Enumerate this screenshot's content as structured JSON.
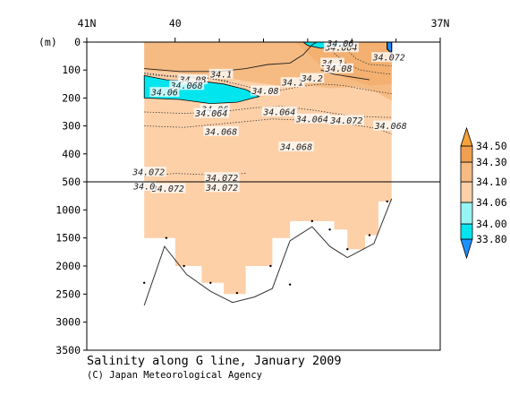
{
  "chart_data": {
    "type": "contour",
    "title": "Salinity along G line, January 2009",
    "credit": "(C) Japan Meteorological Agency",
    "ylabel": "(m)",
    "x_axis": {
      "range_lat": [
        41,
        37
      ],
      "tick_labels": [
        {
          "lat": 41,
          "label": "41N"
        },
        {
          "lat": 40,
          "label": "40"
        },
        {
          "lat": 37,
          "label": "37N"
        }
      ],
      "minor_ticks_lat": [
        39.5,
        39,
        38.5,
        38,
        37.5
      ]
    },
    "y_axis": {
      "upper_segment": {
        "range_m": [
          0,
          500
        ],
        "ticks": [
          0,
          100,
          200,
          300,
          400,
          500
        ]
      },
      "lower_segment": {
        "range_m": [
          500,
          3500
        ],
        "ticks": [
          1000,
          1500,
          2000,
          2500,
          3000,
          3500
        ]
      }
    },
    "colorbar": {
      "levels": [
        33.8,
        34.0,
        34.06,
        34.1,
        34.3,
        34.5
      ],
      "level_labels": [
        "33.80",
        "34.00",
        "34.06",
        "34.10",
        "34.30",
        "34.50"
      ],
      "colors": [
        "#1e90ff",
        "#00e5ee",
        "#97f4f4",
        "#fdd0a8",
        "#f5bb83",
        "#f0a050",
        "#f5a23a"
      ]
    },
    "fill_colors": {
      "s_34_06_to_34_10": "#fdd0a8",
      "s_34_10_to_34_30": "#f5bb83",
      "s_34_00_to_34_06": "#00e5ee",
      "s_34_30_to_34_50": "#f0a050"
    },
    "contour_labels": [
      {
        "text": "34.1",
        "lat": 39.48,
        "depth": 115
      },
      {
        "text": "34.08",
        "lat": 39.8,
        "depth": 135
      },
      {
        "text": "34.068",
        "lat": 39.87,
        "depth": 155
      },
      {
        "text": "34.06",
        "lat": 40.12,
        "depth": 180
      },
      {
        "text": "34.08",
        "lat": 38.98,
        "depth": 175
      },
      {
        "text": "34.1",
        "lat": 38.67,
        "depth": 145
      },
      {
        "text": "34.2",
        "lat": 38.45,
        "depth": 130
      },
      {
        "text": "34.1",
        "lat": 38.22,
        "depth": 75
      },
      {
        "text": "34.08",
        "lat": 38.15,
        "depth": 95
      },
      {
        "text": "34.064",
        "lat": 38.12,
        "depth": 20
      },
      {
        "text": "34.06",
        "lat": 38.13,
        "depth": 5
      },
      {
        "text": "34.072",
        "lat": 37.58,
        "depth": 55
      },
      {
        "text": "34.06",
        "lat": 39.55,
        "depth": 240
      },
      {
        "text": "34.064",
        "lat": 39.59,
        "depth": 255
      },
      {
        "text": "34.068",
        "lat": 39.48,
        "depth": 320
      },
      {
        "text": "34.064",
        "lat": 38.82,
        "depth": 250
      },
      {
        "text": "34.064",
        "lat": 38.45,
        "depth": 275
      },
      {
        "text": "34.072",
        "lat": 38.06,
        "depth": 280
      },
      {
        "text": "34.068",
        "lat": 37.56,
        "depth": 300
      },
      {
        "text": "34.068",
        "lat": 38.63,
        "depth": 375
      },
      {
        "text": "34.072",
        "lat": 40.3,
        "depth": 465
      },
      {
        "text": "34.072",
        "lat": 39.47,
        "depth": 485
      },
      {
        "text": "34.072",
        "lat": 39.47,
        "depth": 600
      },
      {
        "text": "34.072",
        "lat": 40.08,
        "depth": 620
      },
      {
        "text": "34.0",
        "lat": 40.35,
        "depth": 580
      }
    ],
    "section_extent_lat": [
      40.35,
      37.55
    ],
    "data_bottom_blocks": [
      {
        "lat": [
          40.35,
          40.0
        ],
        "depth": 1500
      },
      {
        "lat": [
          40.0,
          39.7
        ],
        "depth": 2000
      },
      {
        "lat": [
          39.7,
          39.45
        ],
        "depth": 2300
      },
      {
        "lat": [
          39.45,
          39.2
        ],
        "depth": 2500
      },
      {
        "lat": [
          39.2,
          38.9
        ],
        "depth": 2000
      },
      {
        "lat": [
          38.9,
          38.7
        ],
        "depth": 1500
      },
      {
        "lat": [
          38.7,
          38.35
        ],
        "depth": 1200
      },
      {
        "lat": [
          38.35,
          38.2
        ],
        "depth": 1200
      },
      {
        "lat": [
          38.2,
          38.05
        ],
        "depth": 1350
      },
      {
        "lat": [
          38.05,
          37.85
        ],
        "depth": 1700
      },
      {
        "lat": [
          37.85,
          37.7
        ],
        "depth": 1450
      },
      {
        "lat": [
          37.7,
          37.55
        ],
        "depth": 850
      }
    ],
    "bottom_topography": [
      {
        "lat": 40.35,
        "depth": 2700
      },
      {
        "lat": 40.12,
        "depth": 1650
      },
      {
        "lat": 39.87,
        "depth": 2150
      },
      {
        "lat": 39.6,
        "depth": 2450
      },
      {
        "lat": 39.35,
        "depth": 2650
      },
      {
        "lat": 39.1,
        "depth": 2550
      },
      {
        "lat": 38.9,
        "depth": 2400
      },
      {
        "lat": 38.7,
        "depth": 1550
      },
      {
        "lat": 38.45,
        "depth": 1300
      },
      {
        "lat": 38.25,
        "depth": 1650
      },
      {
        "lat": 38.05,
        "depth": 1850
      },
      {
        "lat": 37.75,
        "depth": 1600
      },
      {
        "lat": 37.55,
        "depth": 800
      }
    ],
    "station_markers": [
      {
        "lat": 40.35,
        "depth": 2300
      },
      {
        "lat": 40.1,
        "depth": 1500
      },
      {
        "lat": 39.9,
        "depth": 2000
      },
      {
        "lat": 39.6,
        "depth": 2300
      },
      {
        "lat": 39.3,
        "depth": 2480
      },
      {
        "lat": 38.92,
        "depth": 2000
      },
      {
        "lat": 38.7,
        "depth": 2330
      },
      {
        "lat": 38.45,
        "depth": 1200
      },
      {
        "lat": 38.25,
        "depth": 1350
      },
      {
        "lat": 38.05,
        "depth": 1700
      },
      {
        "lat": 37.8,
        "depth": 1450
      },
      {
        "lat": 37.6,
        "depth": 850
      }
    ]
  }
}
